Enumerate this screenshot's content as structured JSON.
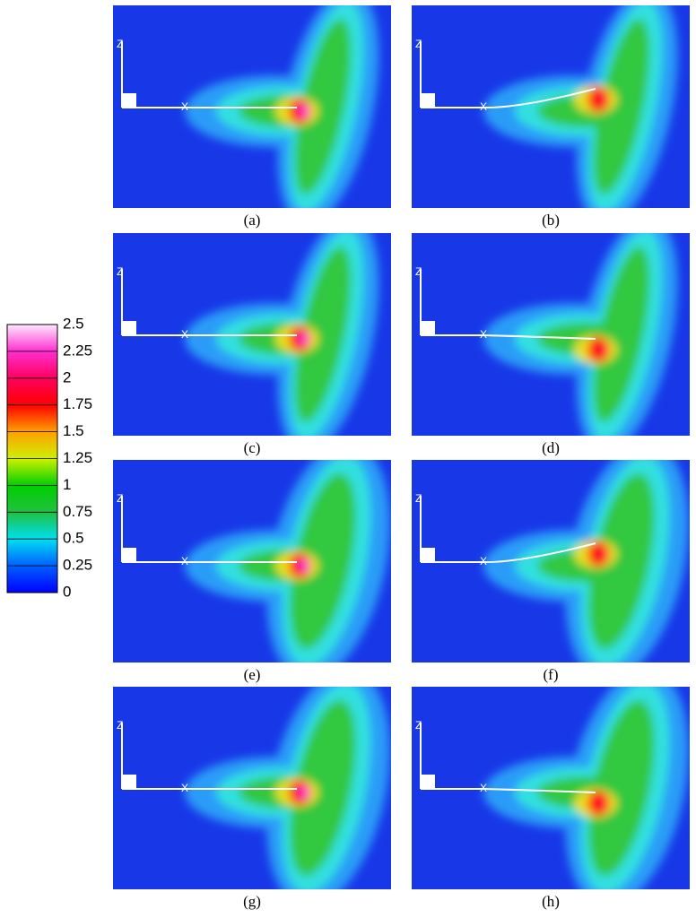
{
  "colorbar": {
    "labels": [
      "2.5",
      "2.25",
      "2",
      "1.75",
      "1.5",
      "1.25",
      "1",
      "0.75",
      "0.5",
      "0.25",
      "0"
    ]
  },
  "axis_labels": {
    "z": "Z",
    "x": "X"
  },
  "panels": [
    {
      "label": "(a)"
    },
    {
      "label": "(b)"
    },
    {
      "label": "(c)"
    },
    {
      "label": "(d)"
    },
    {
      "label": "(e)"
    },
    {
      "label": "(f)"
    },
    {
      "label": "(g)"
    },
    {
      "label": "(h)"
    }
  ]
}
